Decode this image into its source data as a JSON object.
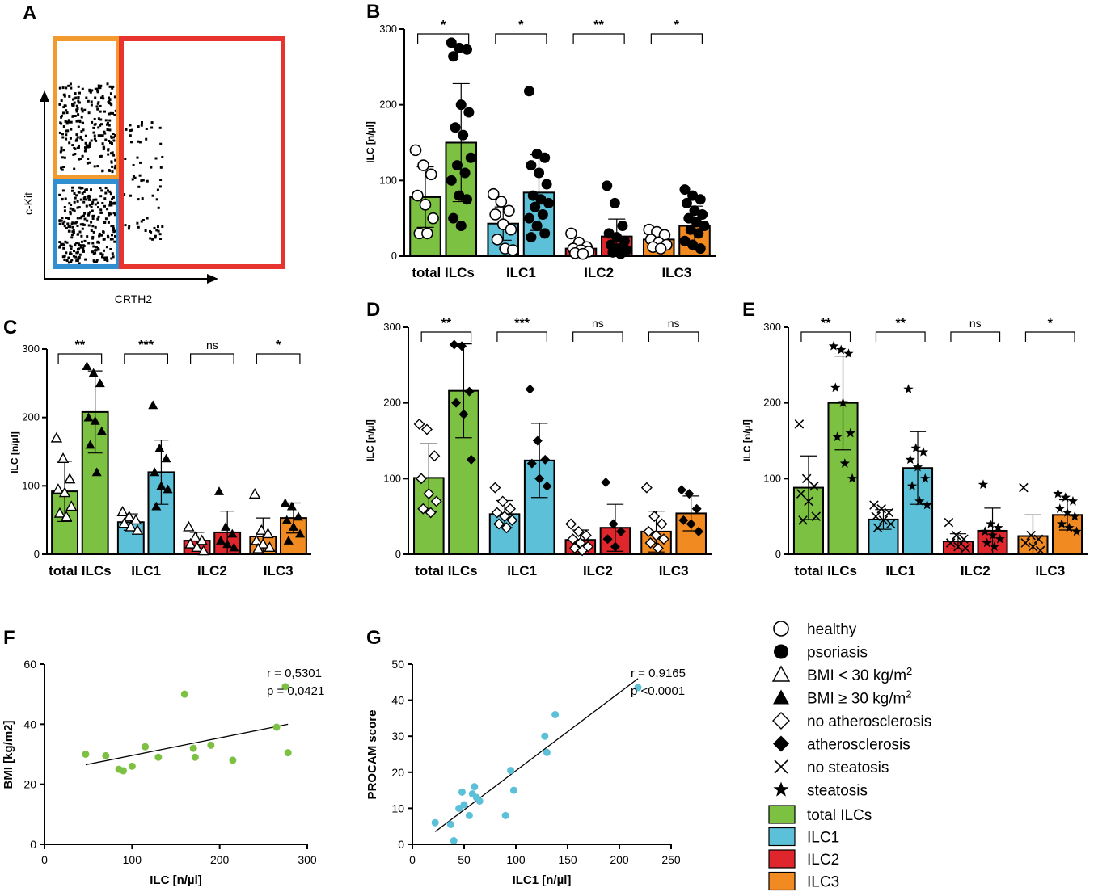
{
  "panels": {
    "A": {
      "label": "A",
      "xlabel": "CRTH2",
      "ylabel": "c-Kit",
      "gate_colors": {
        "orange": "#f39a2e",
        "blue": "#2f8fd0",
        "red": "#e8342e"
      }
    }
  },
  "colors": {
    "total": "#7dc143",
    "ilc1": "#5bc0d8",
    "ilc2": "#e0262d",
    "ilc3": "#f28a22"
  },
  "chart_data": [
    {
      "id": "B",
      "label": "B",
      "type": "bar",
      "categories": [
        "total ILCs",
        "ILC1",
        "ILC2",
        "ILC3"
      ],
      "ylabel": "ILC [n/µl]",
      "ylim": [
        0,
        300
      ],
      "yticks": [
        0,
        100,
        200,
        300
      ],
      "series": [
        {
          "name": "healthy",
          "marker": "circle-open",
          "values": [
            78,
            43,
            10,
            22
          ],
          "sd": [
            40,
            22,
            8,
            12
          ],
          "points": [
            [
              140,
              120,
              108,
              80,
              68,
              50,
              30,
              30
            ],
            [
              82,
              72,
              60,
              55,
              42,
              35,
              22,
              10,
              8
            ],
            [
              30,
              18,
              12,
              10,
              8,
              6,
              4,
              3
            ],
            [
              35,
              32,
              28,
              22,
              18,
              15,
              12,
              10
            ]
          ]
        },
        {
          "name": "psoriasis",
          "marker": "circle-filled",
          "values": [
            150,
            84,
            26,
            40
          ],
          "sd": [
            78,
            50,
            23,
            26
          ],
          "points": [
            [
              282,
              275,
              273,
              264,
              200,
              190,
              170,
              160,
              130,
              120,
              110,
              100,
              80,
              75,
              50,
              40
            ],
            [
              218,
              135,
              130,
              120,
              110,
              95,
              80,
              75,
              70,
              65,
              55,
              50,
              40,
              30,
              25
            ],
            [
              93,
              70,
              40,
              30,
              25,
              20,
              15,
              10,
              8,
              5,
              3
            ],
            [
              88,
              80,
              75,
              70,
              60,
              55,
              50,
              45,
              40,
              35,
              30,
              20,
              15,
              10
            ]
          ]
        }
      ],
      "significance": [
        "*",
        "*",
        "**",
        "*"
      ]
    },
    {
      "id": "C",
      "label": "C",
      "type": "bar",
      "categories": [
        "total ILCs",
        "ILC1",
        "ILC2",
        "ILC3"
      ],
      "ylabel": "ILC [n/µl]",
      "ylim": [
        0,
        300
      ],
      "yticks": [
        0,
        100,
        200,
        300
      ],
      "series": [
        {
          "name": "BMI < 30 kg/m2",
          "marker": "triangle-open",
          "values": [
            92,
            47,
            20,
            26
          ],
          "sd": [
            44,
            12,
            12,
            27
          ],
          "points": [
            [
              170,
              140,
              110,
              95,
              90,
              70,
              60,
              55
            ],
            [
              62,
              55,
              50,
              45,
              40,
              35
            ],
            [
              40,
              25,
              20,
              15,
              10,
              5
            ],
            [
              88,
              35,
              30,
              20,
              15,
              10,
              8
            ]
          ]
        },
        {
          "name": "BMI ≥ 30 kg/m2",
          "marker": "triangle-filled",
          "values": [
            208,
            120,
            32,
            53
          ],
          "sd": [
            60,
            47,
            31,
            22
          ],
          "points": [
            [
              275,
              265,
              250,
              200,
              195,
              180,
              160,
              120
            ],
            [
              218,
              155,
              140,
              120,
              100,
              95,
              70
            ],
            [
              92,
              40,
              30,
              20,
              15,
              10
            ],
            [
              75,
              70,
              55,
              50,
              40,
              30,
              20
            ]
          ]
        }
      ],
      "significance": [
        "**",
        "***",
        "ns",
        "*"
      ]
    },
    {
      "id": "D",
      "label": "D",
      "type": "bar",
      "categories": [
        "total ILCs",
        "ILC1",
        "ILC2",
        "ILC3"
      ],
      "ylabel": "ILC [n/µl]",
      "ylim": [
        0,
        300
      ],
      "yticks": [
        0,
        100,
        200,
        300
      ],
      "series": [
        {
          "name": "no atherosclerosis",
          "marker": "diamond-open",
          "values": [
            101,
            53,
            19,
            30
          ],
          "sd": [
            45,
            18,
            13,
            27
          ],
          "points": [
            [
              172,
              165,
              130,
              100,
              80,
              70,
              60,
              55
            ],
            [
              88,
              70,
              60,
              55,
              50,
              45,
              40,
              35
            ],
            [
              40,
              30,
              25,
              20,
              15,
              10,
              8,
              5
            ],
            [
              88,
              50,
              40,
              30,
              25,
              20,
              15,
              8
            ]
          ]
        },
        {
          "name": "atherosclerosis",
          "marker": "diamond-filled",
          "values": [
            216,
            124,
            35,
            54
          ],
          "sd": [
            62,
            49,
            31,
            23
          ],
          "points": [
            [
              277,
              275,
              215,
              200,
              185,
              125
            ],
            [
              218,
              150,
              125,
              120,
              100,
              90
            ],
            [
              95,
              40,
              30,
              20,
              10
            ],
            [
              85,
              80,
              60,
              45,
              40,
              30
            ]
          ]
        }
      ],
      "significance": [
        "**",
        "***",
        "ns",
        "ns"
      ]
    },
    {
      "id": "E",
      "label": "E",
      "type": "bar",
      "categories": [
        "total ILCs",
        "ILC1",
        "ILC2",
        "ILC3"
      ],
      "ylabel": "ILC [n/µl]",
      "ylim": [
        0,
        300
      ],
      "yticks": [
        0,
        100,
        200,
        300
      ],
      "series": [
        {
          "name": "no steatosis",
          "marker": "x",
          "values": [
            88,
            46,
            17,
            24
          ],
          "sd": [
            42,
            13,
            10,
            28
          ],
          "points": [
            [
              172,
              100,
              90,
              80,
              70,
              50,
              45
            ],
            [
              65,
              60,
              55,
              50,
              45,
              40,
              35
            ],
            [
              42,
              25,
              20,
              15,
              10,
              8
            ],
            [
              88,
              25,
              20,
              15,
              10,
              5
            ]
          ]
        },
        {
          "name": "steatosis",
          "marker": "star",
          "values": [
            200,
            114,
            31,
            52
          ],
          "sd": [
            62,
            48,
            30,
            20
          ],
          "points": [
            [
              275,
              270,
              265,
              220,
              200,
              160,
              155,
              120,
              100
            ],
            [
              218,
              140,
              135,
              125,
              115,
              100,
              90,
              70,
              65
            ],
            [
              92,
              40,
              35,
              30,
              25,
              20,
              15,
              10
            ],
            [
              80,
              75,
              70,
              60,
              55,
              50,
              40,
              35,
              30
            ]
          ]
        }
      ],
      "significance": [
        "**",
        "**",
        "ns",
        "*"
      ]
    },
    {
      "id": "F",
      "label": "F",
      "type": "scatter",
      "xlabel": "ILC [n/µl]",
      "ylabel": "BMI [kg/m2]",
      "xlim": [
        0,
        300
      ],
      "ylim": [
        0,
        60
      ],
      "xticks": [
        0,
        100,
        200,
        300
      ],
      "yticks": [
        0,
        20,
        40,
        60
      ],
      "x": [
        47,
        70,
        85,
        90,
        100,
        115,
        130,
        160,
        170,
        172,
        190,
        215,
        265,
        275,
        278
      ],
      "y": [
        30,
        29.5,
        25,
        24.5,
        26,
        32.5,
        29,
        50,
        32,
        29,
        33,
        28,
        39,
        52.5,
        30.5
      ],
      "fit": {
        "x0": 47,
        "y0": 26.5,
        "x1": 278,
        "y1": 40
      },
      "annotation": [
        "r = 0,5301",
        "p = 0,0421"
      ]
    },
    {
      "id": "G",
      "label": "G",
      "type": "scatter",
      "xlabel": "ILC1 [n/µl]",
      "ylabel": "PROCAM score",
      "xlim": [
        0,
        250
      ],
      "ylim": [
        0,
        50
      ],
      "xticks": [
        0,
        50,
        100,
        150,
        200,
        250
      ],
      "yticks": [
        0,
        10,
        20,
        30,
        40,
        50
      ],
      "x": [
        22,
        37,
        40,
        45,
        48,
        50,
        55,
        58,
        60,
        62,
        65,
        90,
        95,
        98,
        128,
        130,
        138,
        218
      ],
      "y": [
        6,
        5.5,
        1,
        10,
        14.5,
        11,
        8,
        14,
        16,
        13,
        12,
        8,
        20.5,
        15,
        30,
        25.5,
        36,
        43.5
      ],
      "fit": {
        "x0": 22,
        "y0": 3.5,
        "x1": 218,
        "y1": 46
      },
      "annotation": [
        "r = 0,9165",
        "p <0.0001"
      ]
    }
  ],
  "legend": {
    "markers": [
      {
        "marker": "circle-open",
        "label": "healthy"
      },
      {
        "marker": "circle-filled",
        "label": "psoriasis"
      },
      {
        "marker": "triangle-open",
        "label": "BMI < 30 kg/m",
        "sup": "2"
      },
      {
        "marker": "triangle-filled",
        "label": "BMI ≥  30 kg/m",
        "sup": "2"
      },
      {
        "marker": "diamond-open",
        "label": "no atherosclerosis"
      },
      {
        "marker": "diamond-filled",
        "label": "atherosclerosis"
      },
      {
        "marker": "x",
        "label": "no steatosis"
      },
      {
        "marker": "star",
        "label": "steatosis"
      }
    ],
    "swatches": [
      {
        "color": "#7dc143",
        "label": "total ILCs"
      },
      {
        "color": "#5bc0d8",
        "label": "ILC1"
      },
      {
        "color": "#e0262d",
        "label": "ILC2"
      },
      {
        "color": "#f28a22",
        "label": "ILC3"
      }
    ]
  }
}
